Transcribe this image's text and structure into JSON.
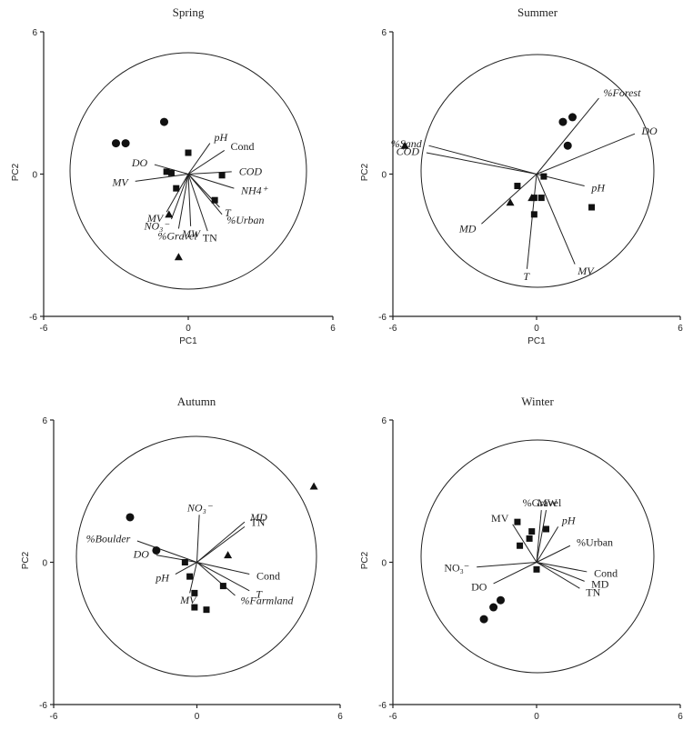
{
  "chart_data": [
    {
      "type": "scatter",
      "title": "Spring",
      "xlabel": "PC1",
      "ylabel": "PC2",
      "xlim": [
        -6,
        6
      ],
      "ylim": [
        -6,
        6
      ],
      "x_ticks": [
        "-6",
        "0",
        "6"
      ],
      "y_ticks": [
        "6",
        "0",
        "-6"
      ],
      "loadings": [
        {
          "label": "pH",
          "italic": true,
          "x": 0.9,
          "y": 1.3
        },
        {
          "label": "Cond",
          "italic": false,
          "x": 1.5,
          "y": 1.0
        },
        {
          "label": "DO",
          "italic": true,
          "x": -1.4,
          "y": 0.4
        },
        {
          "label": "COD",
          "italic": true,
          "x": 1.8,
          "y": 0.1
        },
        {
          "label": "MV",
          "italic": true,
          "x": -2.2,
          "y": -0.3
        },
        {
          "label": "NH4⁺",
          "italic": true,
          "x": 1.9,
          "y": -0.6
        },
        {
          "label": "T",
          "italic": true,
          "x": 1.3,
          "y": -1.4
        },
        {
          "label": "%Urban",
          "italic": true,
          "x": 1.4,
          "y": -1.7
        },
        {
          "label": "MV",
          "italic": true,
          "x": -0.9,
          "y": -1.6
        },
        {
          "label": "NO₃⁻",
          "italic": true,
          "x": -0.7,
          "y": -1.9
        },
        {
          "label": "MW",
          "italic": true,
          "x": 0.1,
          "y": -2.2
        },
        {
          "label": "TN",
          "italic": false,
          "x": 0.8,
          "y": -2.4
        },
        {
          "label": "%Gravel",
          "italic": true,
          "x": -0.4,
          "y": -2.3
        }
      ],
      "points": [
        {
          "marker": "circle",
          "x": -3.0,
          "y": 1.3
        },
        {
          "marker": "circle",
          "x": -2.6,
          "y": 1.3
        },
        {
          "marker": "circle",
          "x": -1.0,
          "y": 2.2
        },
        {
          "marker": "square",
          "x": 0.0,
          "y": 0.9
        },
        {
          "marker": "square",
          "x": -0.9,
          "y": 0.1
        },
        {
          "marker": "square",
          "x": -0.7,
          "y": 0.05
        },
        {
          "marker": "square",
          "x": 1.4,
          "y": -0.05
        },
        {
          "marker": "square",
          "x": -0.5,
          "y": -0.6
        },
        {
          "marker": "square",
          "x": 1.1,
          "y": -1.1
        },
        {
          "marker": "triangle",
          "x": -0.8,
          "y": -1.7
        },
        {
          "marker": "triangle",
          "x": -0.4,
          "y": -3.5
        }
      ]
    },
    {
      "type": "scatter",
      "title": "Summer",
      "xlabel": "PC1",
      "ylabel": "PC2",
      "xlim": [
        -6,
        6
      ],
      "ylim": [
        -6,
        6
      ],
      "x_ticks": [
        "-6",
        "0",
        "6"
      ],
      "y_ticks": [
        "6",
        "0",
        "-6"
      ],
      "loadings": [
        {
          "label": "%Forest",
          "italic": true,
          "x": 2.6,
          "y": 3.2
        },
        {
          "label": "DO",
          "italic": true,
          "x": 4.1,
          "y": 1.7
        },
        {
          "label": "%Sand",
          "italic": true,
          "x": -4.5,
          "y": 1.2
        },
        {
          "label": "COD",
          "italic": true,
          "x": -4.6,
          "y": 0.9
        },
        {
          "label": "pH",
          "italic": true,
          "x": 2.0,
          "y": -0.5
        },
        {
          "label": "MD",
          "italic": true,
          "x": -2.3,
          "y": -2.1
        },
        {
          "label": "T",
          "italic": true,
          "x": -0.4,
          "y": -4.0
        },
        {
          "label": "MV",
          "italic": true,
          "x": 1.6,
          "y": -3.8
        }
      ],
      "points": [
        {
          "marker": "circle",
          "x": 1.1,
          "y": 2.2
        },
        {
          "marker": "circle",
          "x": 1.5,
          "y": 2.4
        },
        {
          "marker": "circle",
          "x": 1.3,
          "y": 1.2
        },
        {
          "marker": "square",
          "x": 0.3,
          "y": -0.1
        },
        {
          "marker": "square",
          "x": -0.8,
          "y": -0.5
        },
        {
          "marker": "square",
          "x": -0.1,
          "y": -1.0
        },
        {
          "marker": "square",
          "x": 0.2,
          "y": -1.0
        },
        {
          "marker": "square",
          "x": -0.1,
          "y": -1.7
        },
        {
          "marker": "square",
          "x": 2.3,
          "y": -1.4
        },
        {
          "marker": "triangle",
          "x": -5.5,
          "y": 1.2
        },
        {
          "marker": "triangle",
          "x": -1.1,
          "y": -1.2
        },
        {
          "marker": "triangle",
          "x": -0.2,
          "y": -1.0
        }
      ]
    },
    {
      "type": "scatter",
      "title": "Autumn",
      "xlabel": "",
      "ylabel": "PC2",
      "xlim": [
        -6,
        6
      ],
      "ylim": [
        -6,
        6
      ],
      "x_ticks": [
        "-6",
        "0",
        "6"
      ],
      "y_ticks": [
        "6",
        "0",
        "-6"
      ],
      "loadings": [
        {
          "label": "NO₃⁻",
          "italic": true,
          "x": 0.1,
          "y": 2.0
        },
        {
          "label": "MD",
          "italic": true,
          "x": 2.0,
          "y": 1.7
        },
        {
          "label": "TN",
          "italic": false,
          "x": 2.0,
          "y": 1.5
        },
        {
          "label": "%Boulder",
          "italic": true,
          "x": -2.5,
          "y": 0.9
        },
        {
          "label": "DO",
          "italic": true,
          "x": -1.7,
          "y": 0.3
        },
        {
          "label": "Cond",
          "italic": false,
          "x": 2.2,
          "y": -0.5
        },
        {
          "label": "T",
          "italic": true,
          "x": 2.2,
          "y": -1.2
        },
        {
          "label": "pH",
          "italic": true,
          "x": -0.9,
          "y": -0.5
        },
        {
          "label": "MV",
          "italic": true,
          "x": -0.3,
          "y": -1.3
        },
        {
          "label": "%Farmland",
          "italic": true,
          "x": 1.6,
          "y": -1.4
        }
      ],
      "points": [
        {
          "marker": "circle",
          "x": -2.8,
          "y": 1.9
        },
        {
          "marker": "circle",
          "x": -1.7,
          "y": 0.5
        },
        {
          "marker": "square",
          "x": -0.5,
          "y": 0.0
        },
        {
          "marker": "square",
          "x": -0.3,
          "y": -0.6
        },
        {
          "marker": "square",
          "x": -0.1,
          "y": -1.3
        },
        {
          "marker": "square",
          "x": -0.1,
          "y": -1.9
        },
        {
          "marker": "square",
          "x": 0.4,
          "y": -2.0
        },
        {
          "marker": "square",
          "x": 1.1,
          "y": -1.0
        },
        {
          "marker": "triangle",
          "x": 1.3,
          "y": 0.3
        },
        {
          "marker": "triangle",
          "x": 4.9,
          "y": 3.2
        }
      ]
    },
    {
      "type": "scatter",
      "title": "Winter",
      "xlabel": "",
      "ylabel": "PC2",
      "xlim": [
        -6,
        6
      ],
      "ylim": [
        -6,
        6
      ],
      "x_ticks": [
        "-6",
        "0",
        "6"
      ],
      "y_ticks": [
        "6",
        "0",
        "-6"
      ],
      "loadings": [
        {
          "label": "%Gravel",
          "italic": false,
          "x": 0.2,
          "y": 2.2
        },
        {
          "label": "MW",
          "italic": false,
          "x": 0.4,
          "y": 2.2
        },
        {
          "label": "MV",
          "italic": false,
          "x": -1.0,
          "y": 1.6
        },
        {
          "label": "pH",
          "italic": true,
          "x": 0.9,
          "y": 1.5
        },
        {
          "label": "%Urban",
          "italic": false,
          "x": 1.4,
          "y": 0.7
        },
        {
          "label": "Cond",
          "italic": false,
          "x": 2.1,
          "y": -0.4
        },
        {
          "label": "NO₃⁻",
          "italic": false,
          "x": -2.5,
          "y": -0.2
        },
        {
          "label": "MD",
          "italic": false,
          "x": 2.0,
          "y": -0.8
        },
        {
          "label": "TN",
          "italic": false,
          "x": 1.8,
          "y": -1.1
        },
        {
          "label": "DO",
          "italic": false,
          "x": -1.8,
          "y": -0.9
        }
      ],
      "points": [
        {
          "marker": "square",
          "x": -0.8,
          "y": 1.7
        },
        {
          "marker": "square",
          "x": -0.2,
          "y": 1.3
        },
        {
          "marker": "square",
          "x": 0.4,
          "y": 1.4
        },
        {
          "marker": "square",
          "x": -0.3,
          "y": 1.0
        },
        {
          "marker": "square",
          "x": -0.7,
          "y": 0.7
        },
        {
          "marker": "square",
          "x": 0.0,
          "y": -0.3
        },
        {
          "marker": "circle",
          "x": -2.2,
          "y": -2.4
        },
        {
          "marker": "circle",
          "x": -1.8,
          "y": -1.9
        },
        {
          "marker": "circle",
          "x": -1.5,
          "y": -1.6
        }
      ]
    }
  ]
}
